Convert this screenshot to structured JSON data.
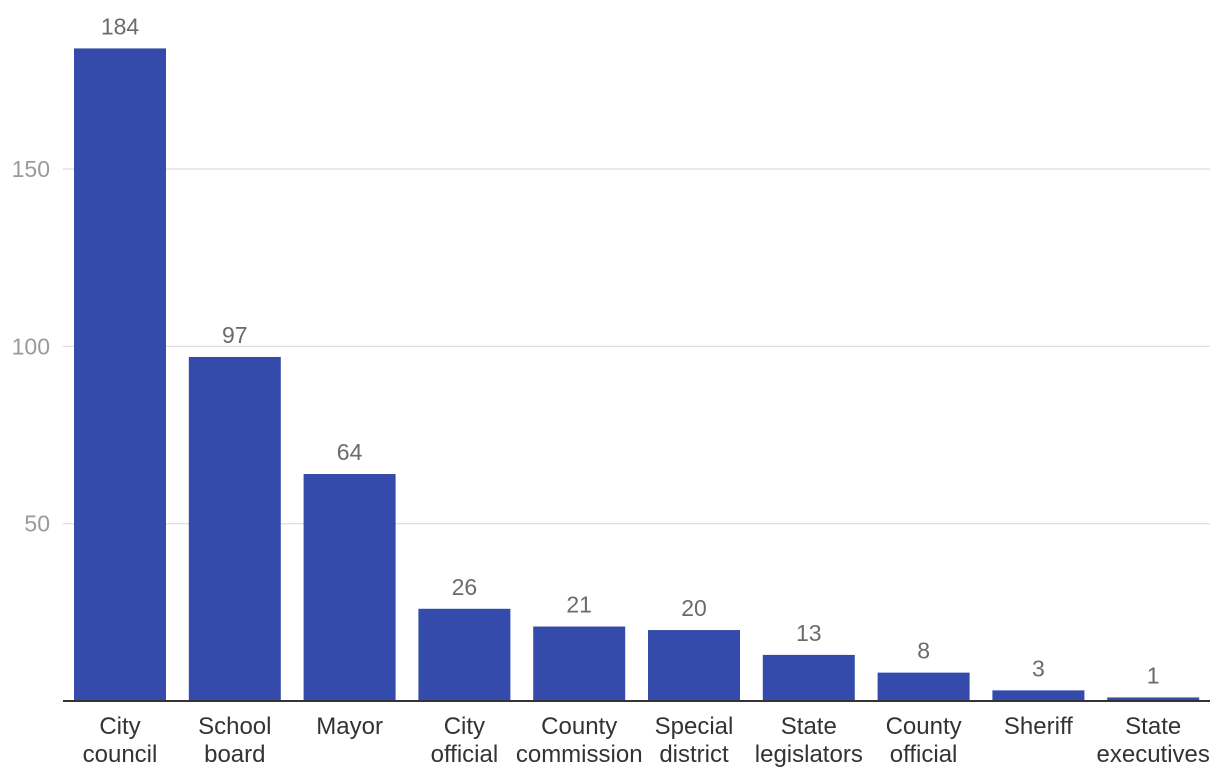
{
  "chart_data": {
    "type": "bar",
    "title": "",
    "xlabel": "",
    "ylabel": "",
    "categories": [
      [
        "City",
        "council"
      ],
      [
        "School",
        "board"
      ],
      [
        "Mayor"
      ],
      [
        "City",
        "official"
      ],
      [
        "County",
        "commission"
      ],
      [
        "Special",
        "district"
      ],
      [
        "State",
        "legislators"
      ],
      [
        "County",
        "official"
      ],
      [
        "Sheriff"
      ],
      [
        "State",
        "executives"
      ]
    ],
    "values": [
      184,
      97,
      64,
      26,
      21,
      20,
      13,
      8,
      3,
      1
    ],
    "value_labels": [
      "184",
      "97",
      "64",
      "26",
      "21",
      "20",
      "13",
      "8",
      "3",
      "1"
    ],
    "ylim": [
      0,
      200
    ],
    "yticks": [
      50,
      100,
      150
    ],
    "ytick_labels": [
      "50",
      "100",
      "150"
    ],
    "grid": true,
    "colors": {
      "bar": "#344BAB",
      "grid": "#dcdcdc",
      "axis": "#333333"
    }
  }
}
